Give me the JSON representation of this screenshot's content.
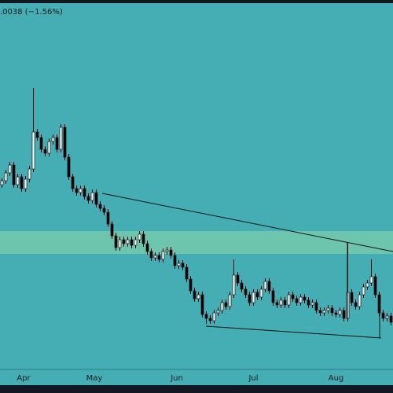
{
  "header": ".0038 (−1.56%)",
  "chart_data": {
    "type": "candlestick",
    "open": [
      235,
      240,
      250,
      260,
      235,
      245,
      230,
      242,
      255,
      302,
      295,
      280,
      275,
      290,
      295,
      280,
      308,
      270,
      245,
      230,
      225,
      230,
      220,
      215,
      225,
      210,
      205,
      200,
      185,
      170,
      155,
      165,
      160,
      165,
      158,
      165,
      172,
      160,
      150,
      142,
      145,
      140,
      150,
      152,
      145,
      132,
      135,
      130,
      115,
      100,
      90,
      95,
      70,
      65,
      62,
      72,
      75,
      85,
      80,
      95,
      120,
      110,
      102,
      95,
      85,
      98,
      92,
      102,
      112,
      100,
      85,
      82,
      88,
      82,
      95,
      90,
      85,
      92,
      88,
      82,
      85,
      75,
      72,
      75,
      78,
      72,
      70,
      75,
      65,
      98,
      85,
      80,
      95,
      105,
      110,
      118,
      95,
      72,
      65,
      68
    ],
    "high": [
      244,
      254,
      264,
      264,
      249,
      249,
      246,
      259,
      358,
      306,
      299,
      284,
      294,
      299,
      299,
      312,
      312,
      274,
      249,
      234,
      234,
      234,
      224,
      229,
      229,
      214,
      209,
      204,
      189,
      174,
      169,
      169,
      169,
      169,
      169,
      176,
      176,
      164,
      154,
      149,
      149,
      154,
      156,
      156,
      149,
      139,
      139,
      134,
      119,
      104,
      99,
      99,
      74,
      69,
      76,
      79,
      89,
      89,
      99,
      140,
      124,
      114,
      106,
      99,
      102,
      102,
      106,
      116,
      116,
      104,
      89,
      92,
      92,
      99,
      99,
      94,
      96,
      96,
      92,
      89,
      89,
      79,
      79,
      82,
      82,
      76,
      79,
      79,
      162,
      102,
      89,
      99,
      109,
      114,
      140,
      122,
      99,
      76,
      72,
      72
    ],
    "low": [
      231,
      236,
      246,
      231,
      231,
      226,
      226,
      238,
      251,
      291,
      276,
      271,
      271,
      286,
      276,
      276,
      266,
      241,
      226,
      221,
      221,
      216,
      211,
      211,
      206,
      201,
      196,
      181,
      166,
      151,
      151,
      156,
      156,
      154,
      154,
      161,
      156,
      146,
      138,
      138,
      136,
      136,
      146,
      141,
      128,
      128,
      126,
      111,
      96,
      86,
      86,
      66,
      58,
      58,
      58,
      68,
      71,
      76,
      76,
      91,
      106,
      98,
      91,
      81,
      81,
      88,
      88,
      98,
      96,
      81,
      78,
      78,
      78,
      78,
      86,
      81,
      81,
      84,
      78,
      78,
      71,
      68,
      68,
      71,
      68,
      66,
      66,
      61,
      61,
      81,
      76,
      76,
      91,
      101,
      106,
      91,
      68,
      61,
      61,
      56
    ],
    "close": [
      240,
      250,
      260,
      235,
      245,
      230,
      242,
      255,
      302,
      295,
      280,
      275,
      290,
      295,
      280,
      308,
      270,
      245,
      230,
      225,
      230,
      220,
      215,
      225,
      210,
      205,
      200,
      185,
      170,
      155,
      165,
      160,
      165,
      158,
      165,
      172,
      160,
      150,
      142,
      145,
      140,
      150,
      152,
      145,
      132,
      135,
      130,
      115,
      100,
      90,
      95,
      70,
      65,
      62,
      72,
      75,
      85,
      80,
      95,
      120,
      110,
      102,
      95,
      85,
      98,
      92,
      102,
      112,
      100,
      85,
      82,
      88,
      82,
      95,
      90,
      85,
      92,
      88,
      82,
      85,
      75,
      72,
      75,
      78,
      72,
      70,
      75,
      65,
      98,
      85,
      80,
      95,
      105,
      110,
      118,
      95,
      72,
      65,
      68,
      60
    ],
    "ylim": [
      0,
      462
    ],
    "xticks": [
      {
        "value": 5.5,
        "label": "Apr"
      },
      {
        "value": 23.5,
        "label": "May"
      },
      {
        "value": 44.5,
        "label": "Jun"
      },
      {
        "value": 64,
        "label": "Jul"
      },
      {
        "value": 85,
        "label": "Aug"
      }
    ],
    "up_color": "#ffffff",
    "down_color": "#000000"
  }
}
